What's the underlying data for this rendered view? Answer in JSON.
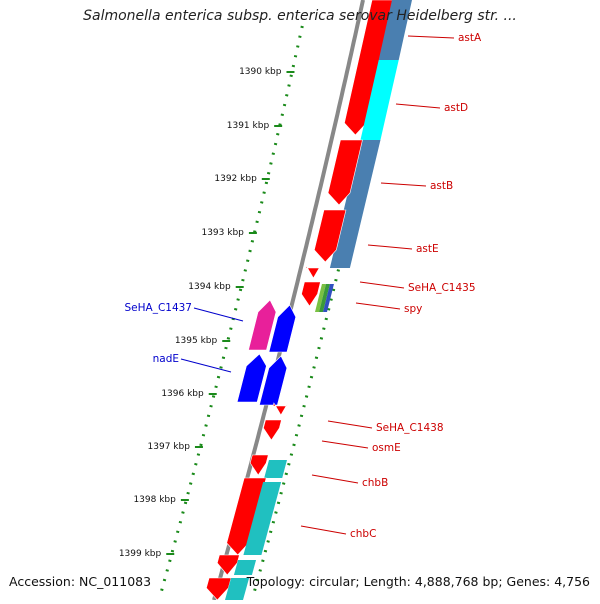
{
  "title": "Salmonella enterica subsp. enterica serovar Heidelberg str. ...",
  "accession": "Accession: NC_011083",
  "summary": "Topology: circular; Length: 4,888,768 bp; Genes: 4,756",
  "scale_labels": [
    "1390 kbp",
    "1391 kbp",
    "1392 kbp",
    "1393 kbp",
    "1394 kbp",
    "1395 kbp",
    "1396 kbp",
    "1397 kbp",
    "1398 kbp",
    "1399 kbp"
  ],
  "outer_genes": [
    "astA",
    "astD",
    "astB",
    "astE",
    "SeHA_C1435",
    "spy",
    "SeHA_C1438",
    "osmE",
    "chbB",
    "chbC"
  ],
  "inner_genes": [
    "SeHA_C1437",
    "nadE"
  ],
  "colors": {
    "gene_red": "#ff0000",
    "gene_blue": "#0000ff",
    "gene_magenta": "#e8209a",
    "cyan": "#00ffff",
    "steel_blue": "#4a7fb0",
    "teal": "#20c0c0",
    "scale_green": "#1a8a1a",
    "label_red": "#cc0000",
    "label_blue": "#0000cc",
    "backbone": "#888888"
  }
}
